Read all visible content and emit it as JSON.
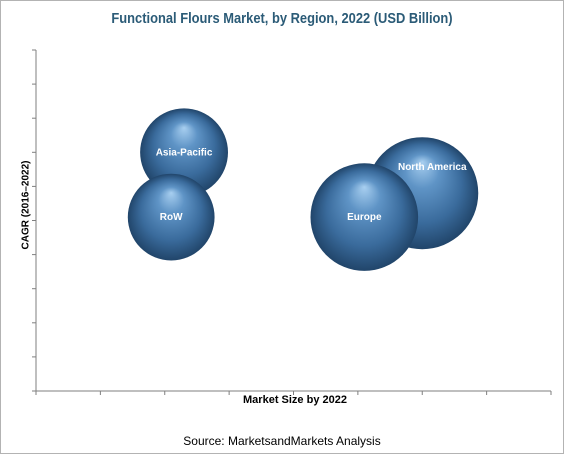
{
  "chart_data": {
    "type": "bubble",
    "title": "Functional Flours Market, by Region, 2022 (USD Billion)",
    "xlabel": "Market Size by 2022",
    "ylabel": "CAGR (2016–2022)",
    "source": "Source: MarketsandMarkets Analysis",
    "xlim": [
      0,
      8
    ],
    "ylim": [
      0,
      10
    ],
    "grid": false,
    "legend": "none",
    "bubble_color": "#3c6e9e",
    "points": [
      {
        "label": "North America",
        "x": 6.0,
        "y": 5.8,
        "size": 6.5
      },
      {
        "label": "Europe",
        "x": 5.1,
        "y": 5.1,
        "size": 6.0
      },
      {
        "label": "Asia-Pacific",
        "x": 2.3,
        "y": 7.0,
        "size": 4.0
      },
      {
        "label": "RoW",
        "x": 2.1,
        "y": 5.1,
        "size": 3.9
      }
    ]
  }
}
